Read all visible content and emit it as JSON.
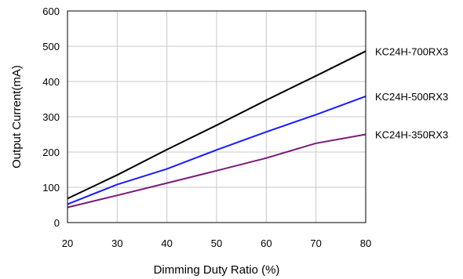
{
  "chart_data": {
    "type": "line",
    "title": "",
    "xlabel": "Dimming Duty Ratio (%)",
    "ylabel": "Output Current(mA)",
    "xlim": [
      20,
      80
    ],
    "ylim": [
      0,
      600
    ],
    "x_ticks": [
      "20",
      "30",
      "40",
      "50",
      "60",
      "70",
      "80"
    ],
    "y_ticks": [
      "0",
      "100",
      "200",
      "300",
      "400",
      "500",
      "600"
    ],
    "grid": true,
    "legend": "labels at right end of lines",
    "x": [
      20,
      30,
      40,
      50,
      60,
      70,
      80
    ],
    "series": [
      {
        "name": "KC24H-700RX3",
        "color": "#000000",
        "values": [
          68,
          135,
          207,
          276,
          347,
          416,
          486
        ]
      },
      {
        "name": "KC24H-500RX3",
        "color": "#1a1aff",
        "values": [
          52,
          108,
          152,
          206,
          257,
          306,
          358
        ]
      },
      {
        "name": "KC24H-350RX3",
        "color": "#7a1a7a",
        "values": [
          43,
          77,
          112,
          147,
          183,
          225,
          250
        ]
      }
    ]
  }
}
